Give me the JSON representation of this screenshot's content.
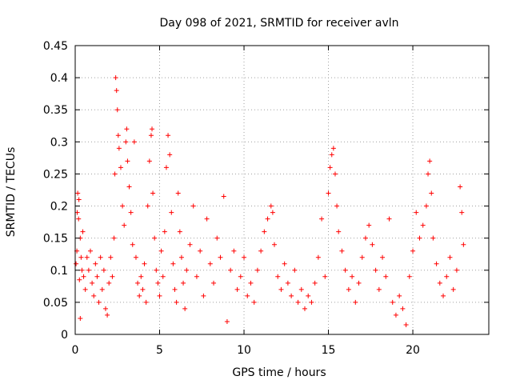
{
  "chart_data": {
    "type": "scatter",
    "title": "Day 098 of 2021, SRMTID for receiver avln",
    "xlabel": "GPS time / hours",
    "ylabel": "SRMTID / TECUs",
    "xlim": [
      0,
      24.5
    ],
    "ylim": [
      0,
      0.45
    ],
    "x_ticks": [
      0,
      5,
      10,
      15,
      20
    ],
    "x_tick_labels": [
      "0",
      "5",
      "10",
      "15",
      "20"
    ],
    "y_ticks": [
      0,
      0.05,
      0.1,
      0.15,
      0.2,
      0.25,
      0.3,
      0.35,
      0.4,
      0.45
    ],
    "y_tick_labels": [
      "0",
      "0.05",
      "0.1",
      "0.15",
      "0.2",
      "0.25",
      "0.3",
      "0.35",
      "0.4",
      "0.45"
    ],
    "grid": true,
    "marker": "+",
    "color": "#ff0000",
    "series": [
      {
        "name": "SRMTID",
        "points": [
          [
            0.05,
            0.11
          ],
          [
            0.1,
            0.13
          ],
          [
            0.12,
            0.19
          ],
          [
            0.15,
            0.22
          ],
          [
            0.2,
            0.18
          ],
          [
            0.22,
            0.21
          ],
          [
            0.25,
            0.085
          ],
          [
            0.3,
            0.15
          ],
          [
            0.3,
            0.025
          ],
          [
            0.35,
            0.12
          ],
          [
            0.4,
            0.1
          ],
          [
            0.45,
            0.16
          ],
          [
            0.5,
            0.09
          ],
          [
            0.6,
            0.07
          ],
          [
            0.7,
            0.12
          ],
          [
            0.8,
            0.1
          ],
          [
            0.9,
            0.13
          ],
          [
            1.0,
            0.08
          ],
          [
            1.1,
            0.06
          ],
          [
            1.2,
            0.11
          ],
          [
            1.3,
            0.09
          ],
          [
            1.4,
            0.05
          ],
          [
            1.5,
            0.12
          ],
          [
            1.6,
            0.07
          ],
          [
            1.7,
            0.1
          ],
          [
            1.8,
            0.04
          ],
          [
            1.9,
            0.03
          ],
          [
            2.0,
            0.08
          ],
          [
            2.1,
            0.12
          ],
          [
            2.2,
            0.09
          ],
          [
            2.3,
            0.15
          ],
          [
            2.35,
            0.25
          ],
          [
            2.4,
            0.4
          ],
          [
            2.45,
            0.38
          ],
          [
            2.5,
            0.35
          ],
          [
            2.55,
            0.31
          ],
          [
            2.6,
            0.29
          ],
          [
            2.7,
            0.26
          ],
          [
            2.8,
            0.2
          ],
          [
            2.9,
            0.17
          ],
          [
            3.0,
            0.3
          ],
          [
            3.05,
            0.32
          ],
          [
            3.1,
            0.27
          ],
          [
            3.2,
            0.23
          ],
          [
            3.3,
            0.19
          ],
          [
            3.4,
            0.14
          ],
          [
            3.5,
            0.3
          ],
          [
            3.6,
            0.12
          ],
          [
            3.7,
            0.08
          ],
          [
            3.8,
            0.06
          ],
          [
            3.9,
            0.09
          ],
          [
            4.0,
            0.07
          ],
          [
            4.1,
            0.11
          ],
          [
            4.2,
            0.05
          ],
          [
            4.3,
            0.2
          ],
          [
            4.4,
            0.27
          ],
          [
            4.5,
            0.31
          ],
          [
            4.55,
            0.32
          ],
          [
            4.6,
            0.22
          ],
          [
            4.7,
            0.15
          ],
          [
            4.8,
            0.1
          ],
          [
            4.9,
            0.08
          ],
          [
            5.0,
            0.06
          ],
          [
            5.1,
            0.13
          ],
          [
            5.2,
            0.09
          ],
          [
            5.3,
            0.16
          ],
          [
            5.4,
            0.26
          ],
          [
            5.5,
            0.31
          ],
          [
            5.6,
            0.28
          ],
          [
            5.7,
            0.19
          ],
          [
            5.8,
            0.11
          ],
          [
            5.9,
            0.07
          ],
          [
            6.0,
            0.05
          ],
          [
            6.1,
            0.22
          ],
          [
            6.2,
            0.16
          ],
          [
            6.3,
            0.12
          ],
          [
            6.4,
            0.08
          ],
          [
            6.5,
            0.04
          ],
          [
            6.6,
            0.1
          ],
          [
            6.8,
            0.14
          ],
          [
            7.0,
            0.2
          ],
          [
            7.2,
            0.09
          ],
          [
            7.4,
            0.13
          ],
          [
            7.6,
            0.06
          ],
          [
            7.8,
            0.18
          ],
          [
            8.0,
            0.11
          ],
          [
            8.2,
            0.08
          ],
          [
            8.4,
            0.15
          ],
          [
            8.6,
            0.12
          ],
          [
            8.8,
            0.215
          ],
          [
            9.0,
            0.02
          ],
          [
            9.2,
            0.1
          ],
          [
            9.4,
            0.13
          ],
          [
            9.6,
            0.07
          ],
          [
            9.8,
            0.09
          ],
          [
            10.0,
            0.12
          ],
          [
            10.2,
            0.06
          ],
          [
            10.4,
            0.08
          ],
          [
            10.6,
            0.05
          ],
          [
            10.8,
            0.1
          ],
          [
            11.0,
            0.13
          ],
          [
            11.2,
            0.16
          ],
          [
            11.4,
            0.18
          ],
          [
            11.6,
            0.2
          ],
          [
            11.7,
            0.19
          ],
          [
            11.8,
            0.14
          ],
          [
            12.0,
            0.09
          ],
          [
            12.2,
            0.07
          ],
          [
            12.4,
            0.11
          ],
          [
            12.6,
            0.08
          ],
          [
            12.8,
            0.06
          ],
          [
            13.0,
            0.1
          ],
          [
            13.2,
            0.05
          ],
          [
            13.4,
            0.07
          ],
          [
            13.6,
            0.04
          ],
          [
            13.8,
            0.06
          ],
          [
            14.0,
            0.05
          ],
          [
            14.2,
            0.08
          ],
          [
            14.4,
            0.12
          ],
          [
            14.6,
            0.18
          ],
          [
            14.8,
            0.09
          ],
          [
            15.0,
            0.22
          ],
          [
            15.1,
            0.26
          ],
          [
            15.2,
            0.28
          ],
          [
            15.3,
            0.29
          ],
          [
            15.4,
            0.25
          ],
          [
            15.5,
            0.2
          ],
          [
            15.6,
            0.16
          ],
          [
            15.8,
            0.13
          ],
          [
            16.0,
            0.1
          ],
          [
            16.2,
            0.07
          ],
          [
            16.4,
            0.09
          ],
          [
            16.6,
            0.05
          ],
          [
            16.8,
            0.08
          ],
          [
            17.0,
            0.12
          ],
          [
            17.2,
            0.15
          ],
          [
            17.4,
            0.17
          ],
          [
            17.6,
            0.14
          ],
          [
            17.8,
            0.1
          ],
          [
            18.0,
            0.07
          ],
          [
            18.2,
            0.12
          ],
          [
            18.4,
            0.09
          ],
          [
            18.6,
            0.18
          ],
          [
            18.8,
            0.05
          ],
          [
            19.0,
            0.03
          ],
          [
            19.2,
            0.06
          ],
          [
            19.4,
            0.04
          ],
          [
            19.6,
            0.015
          ],
          [
            19.8,
            0.09
          ],
          [
            20.0,
            0.13
          ],
          [
            20.2,
            0.19
          ],
          [
            20.4,
            0.15
          ],
          [
            20.6,
            0.17
          ],
          [
            20.8,
            0.2
          ],
          [
            20.9,
            0.25
          ],
          [
            21.0,
            0.27
          ],
          [
            21.1,
            0.22
          ],
          [
            21.2,
            0.15
          ],
          [
            21.4,
            0.11
          ],
          [
            21.6,
            0.08
          ],
          [
            21.8,
            0.06
          ],
          [
            22.0,
            0.09
          ],
          [
            22.2,
            0.12
          ],
          [
            22.4,
            0.07
          ],
          [
            22.6,
            0.1
          ],
          [
            22.8,
            0.23
          ],
          [
            22.9,
            0.19
          ],
          [
            23.0,
            0.14
          ]
        ]
      }
    ]
  }
}
